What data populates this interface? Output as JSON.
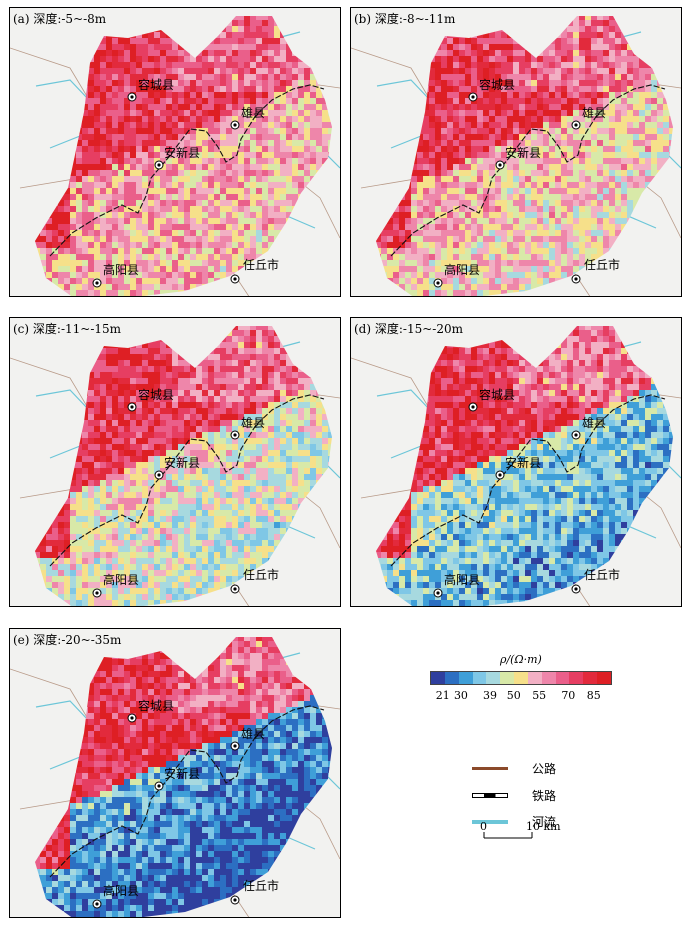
{
  "panels": [
    {
      "label": "(a) 深度:-5~-8m",
      "blue_level": 0.25
    },
    {
      "label": "(b) 深度:-8~-11m",
      "blue_level": 0.3
    },
    {
      "label": "(c) 深度:-11~-15m",
      "blue_level": 0.4
    },
    {
      "label": "(d) 深度:-15~-20m",
      "blue_level": 0.6
    },
    {
      "label": "(e) 深度:-20~-35m",
      "blue_level": 0.75
    }
  ],
  "places": {
    "rongcheng": "容城县",
    "xiongxian": "雄县",
    "anxin": "安新县",
    "gaoyang": "高阳县",
    "renqiu": "任丘市"
  },
  "legend": {
    "title": "ρ/(Ω·m)",
    "ticks": [
      "21",
      "30",
      "39",
      "50",
      "55",
      "70",
      "85"
    ],
    "colors": [
      "#2f3f9e",
      "#2c6fc2",
      "#3f9fd8",
      "#7fc7e6",
      "#a7d9df",
      "#d8e9a8",
      "#f6e08a",
      "#f2b0c4",
      "#ee86aa",
      "#ea5f8a",
      "#e63e62",
      "#e22a3c",
      "#de1f24"
    ],
    "road": "公路",
    "railway": "铁路",
    "river": "河流",
    "road_color": "#8b4a2a",
    "river_color": "#6cc6d8",
    "scale_zero": "0",
    "scale_end": "10 km"
  }
}
